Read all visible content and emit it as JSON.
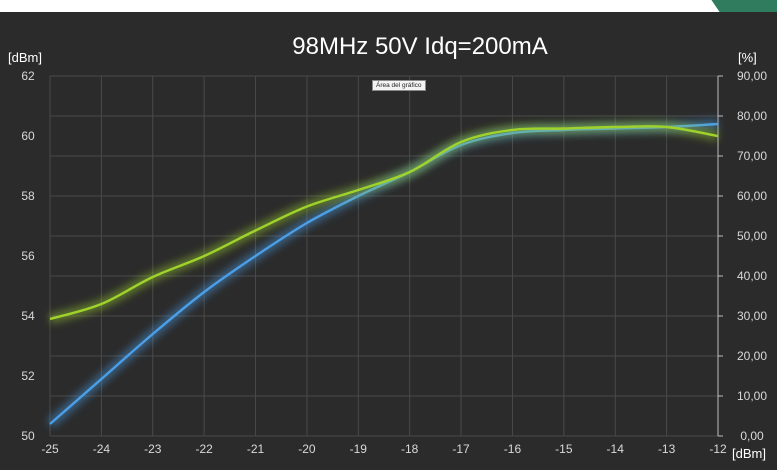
{
  "chart_data": {
    "type": "line",
    "title": "98MHz 50V Idq=200mA",
    "xlabel": "[dBm]",
    "ylabel_left": "[dBm]",
    "ylabel_right": "[%]",
    "xlim": [
      -25,
      -12
    ],
    "ylim_left": [
      50,
      62
    ],
    "ylim_right": [
      0,
      90
    ],
    "x_ticks": [
      "-25",
      "-24",
      "-23",
      "-22",
      "-21",
      "-20",
      "-19",
      "-18",
      "-17",
      "-16",
      "-15",
      "-14",
      "-13",
      "-12"
    ],
    "y_left_ticks": [
      "50",
      "52",
      "54",
      "56",
      "58",
      "60",
      "62"
    ],
    "y_right_ticks": [
      "0,00",
      "10,00",
      "20,00",
      "30,00",
      "40,00",
      "50,00",
      "60,00",
      "70,00",
      "80,00",
      "90,00"
    ],
    "grid": true,
    "background": "#2b2b2b",
    "series": [
      {
        "color": "#4a9fe8",
        "axis": "left",
        "x": [
          -25,
          -24,
          -23,
          -22,
          -21,
          -20,
          -19,
          -18,
          -17,
          -16,
          -15,
          -14,
          -13,
          -12
        ],
        "y": [
          50.4,
          51.9,
          53.4,
          54.8,
          56.0,
          57.1,
          58.0,
          58.8,
          59.7,
          60.1,
          60.2,
          60.25,
          60.3,
          60.4
        ]
      },
      {
        "color": "#9fd32c",
        "axis": "left",
        "x": [
          -25,
          -24,
          -23,
          -22,
          -21,
          -20,
          -19,
          -18,
          -17,
          -16,
          -15,
          -14,
          -13,
          -12
        ],
        "y": [
          53.9,
          54.4,
          55.3,
          56.0,
          56.85,
          57.65,
          58.2,
          58.8,
          59.8,
          60.2,
          60.25,
          60.3,
          60.3,
          60.0
        ]
      }
    ]
  },
  "tooltip": "Área del gráfico"
}
